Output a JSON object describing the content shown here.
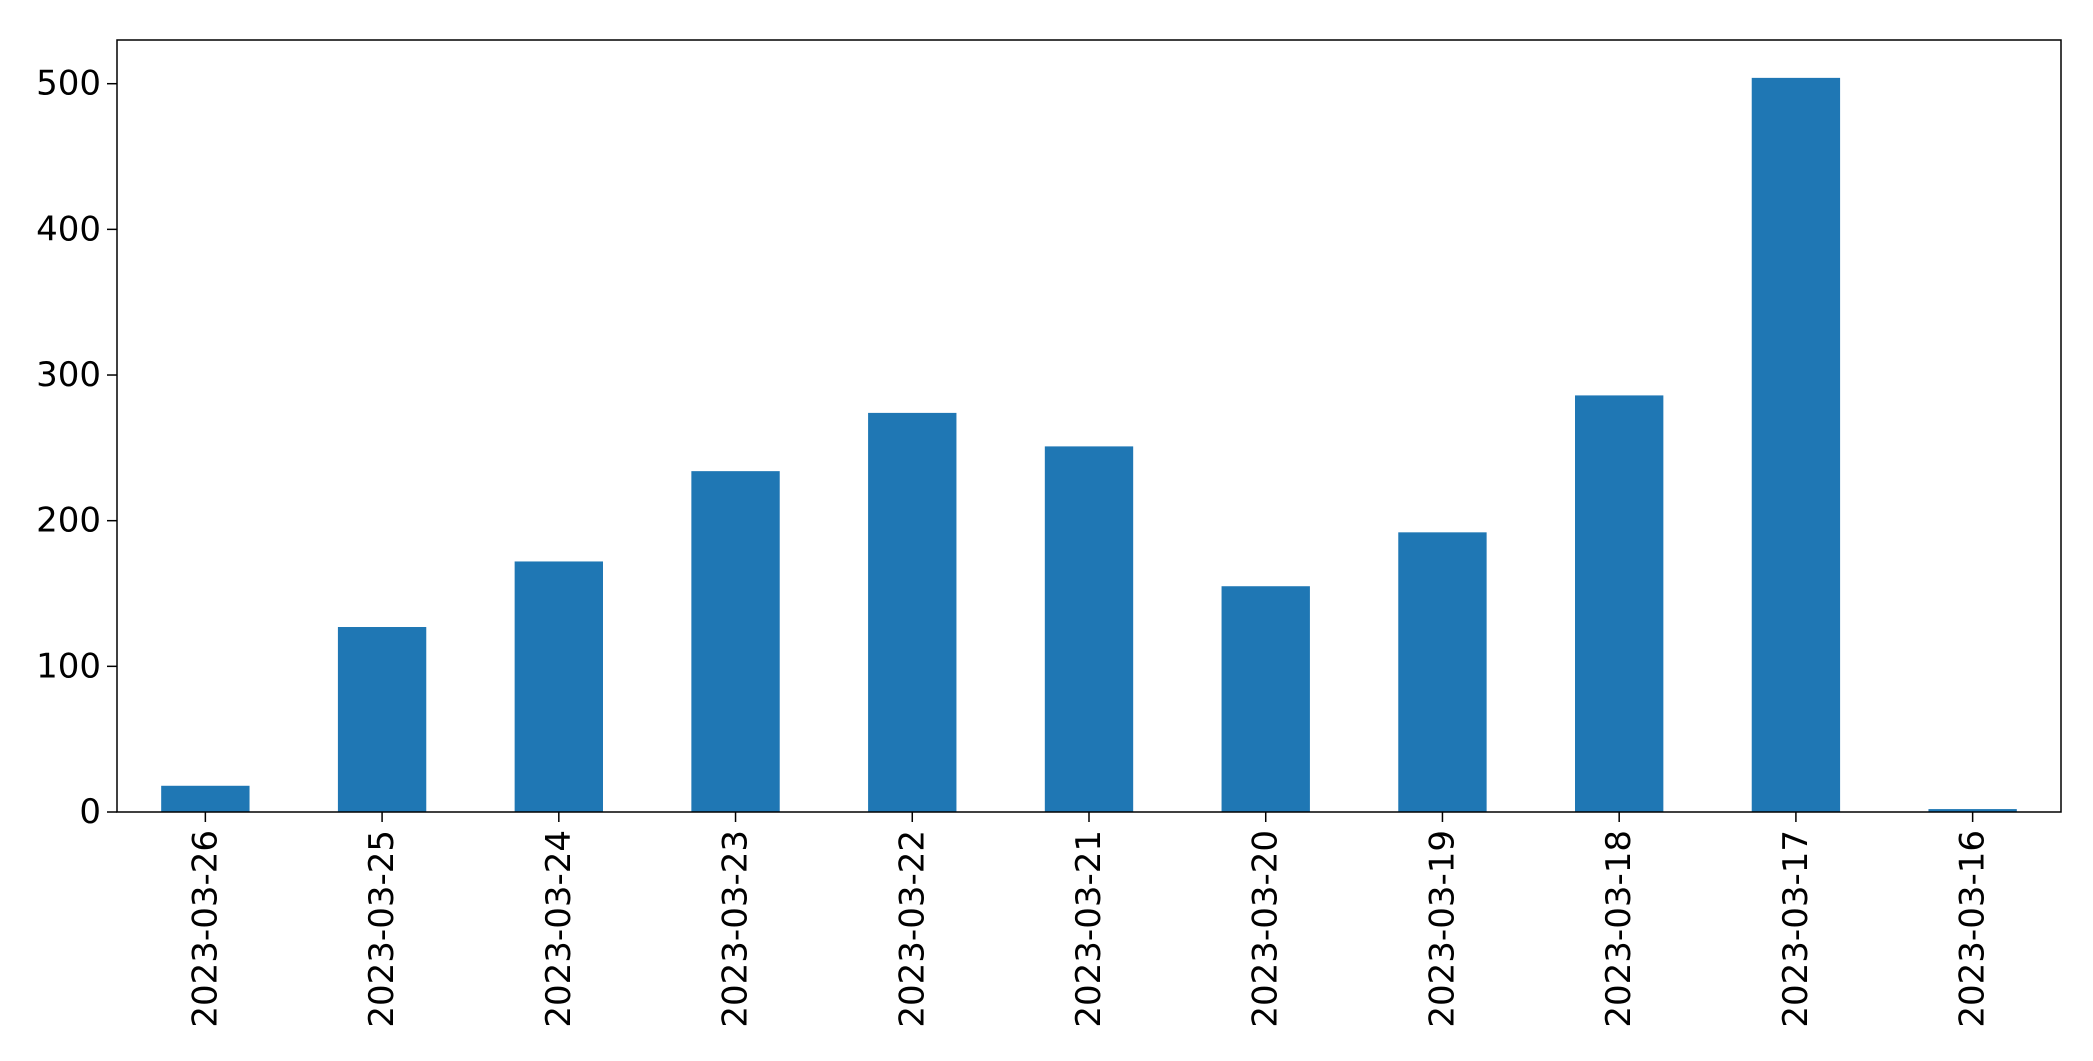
{
  "chart_data": {
    "type": "bar",
    "categories": [
      "2023-03-26",
      "2023-03-25",
      "2023-03-24",
      "2023-03-23",
      "2023-03-22",
      "2023-03-21",
      "2023-03-20",
      "2023-03-19",
      "2023-03-18",
      "2023-03-17",
      "2023-03-16"
    ],
    "values": [
      18,
      127,
      172,
      234,
      274,
      251,
      155,
      192,
      286,
      504,
      2
    ],
    "title": "",
    "xlabel": "",
    "ylabel": "",
    "ylim": [
      0,
      530
    ],
    "yticks": [
      0,
      100,
      200,
      300,
      400,
      500
    ],
    "grid": false,
    "legend": "none",
    "bar_color": "#1f77b4"
  }
}
